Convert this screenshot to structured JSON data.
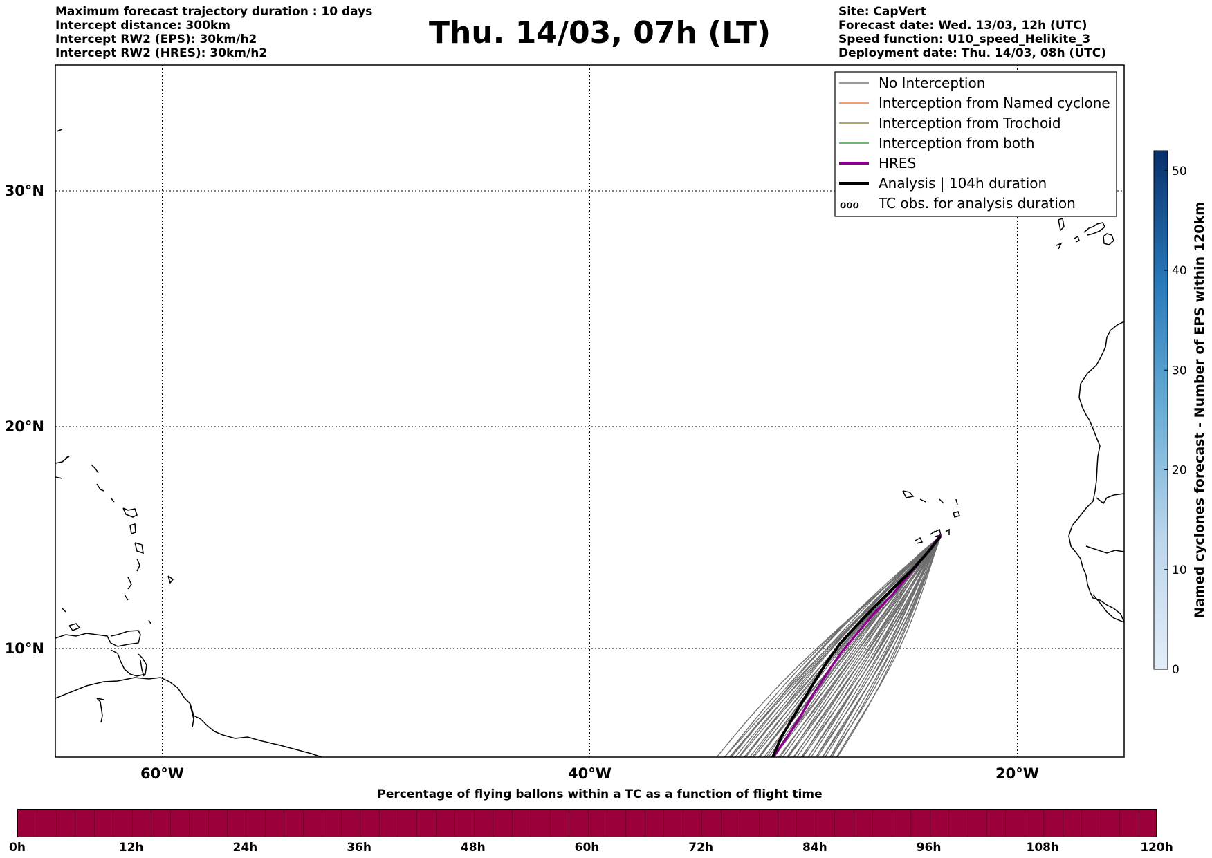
{
  "header": {
    "left_lines": [
      "Maximum forecast trajectory duration : 10 days",
      "Intercept distance: 300km",
      "Intercept RW2 (EPS):  30km/h2",
      "Intercept RW2 (HRES): 30km/h2"
    ],
    "title": "Thu. 14/03, 07h (LT)",
    "right_lines": [
      "Site: CapVert",
      "Forecast date: Wed. 13/03, 12h (UTC)",
      "Speed function: U10_speed_Helikite_3",
      "Deployment date: Thu. 14/03, 08h (UTC)"
    ]
  },
  "map": {
    "lat_labels": [
      "30°N",
      "20°N",
      "10°N"
    ],
    "lon_labels": [
      "60°W",
      "40°W",
      "20°W"
    ],
    "lat_values": [
      30,
      20,
      10
    ],
    "lon_values": [
      -60,
      -40,
      -20
    ],
    "lon_range": [
      -65,
      -15
    ],
    "lat_range": [
      5,
      35
    ],
    "legend": [
      {
        "label": "No Interception",
        "color": "#7a7a7a",
        "style": "thin-line"
      },
      {
        "label": "Interception from Named cyclone",
        "color": "#f47a48",
        "style": "thin-line"
      },
      {
        "label": "Interception from Trochoid",
        "color": "#9a8a3c",
        "style": "thin-line"
      },
      {
        "label": "Interception from both",
        "color": "#3aa33a",
        "style": "thin-line"
      },
      {
        "label": "HRES",
        "color": "#8b008b",
        "style": "thick-line"
      },
      {
        "label": "Analysis | 104h duration",
        "color": "#000000",
        "style": "thick-line"
      },
      {
        "label": "TC obs. for analysis duration",
        "color": "#000000",
        "style": "tc-symbol",
        "symbol": "ℴℴℴ"
      }
    ]
  },
  "colorbar": {
    "label": "Named cyclones forecast - Number of EPS within 120km",
    "ticks": [
      "0",
      "10",
      "20",
      "30",
      "40",
      "50"
    ],
    "tick_values": [
      0,
      10,
      20,
      30,
      40,
      50
    ],
    "max": 52,
    "color_low": "#e3edf8",
    "color_high": "#08306b"
  },
  "time_bar": {
    "title": "Percentage of flying ballons within a TC as a function of flight time",
    "labels": [
      "0h",
      "12h",
      "24h",
      "36h",
      "48h",
      "60h",
      "72h",
      "84h",
      "96h",
      "108h",
      "120h"
    ],
    "fill_color": "#9c003b"
  }
}
